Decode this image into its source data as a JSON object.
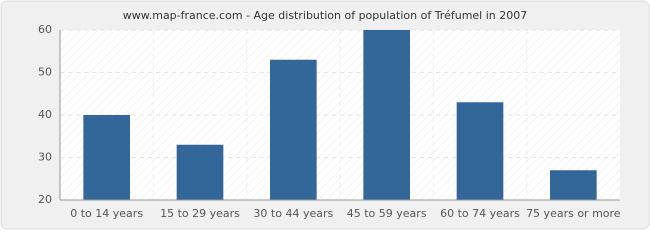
{
  "chart_data": {
    "type": "bar",
    "title": "www.map-france.com - Age distribution of population of Tréfumel in 2007",
    "categories": [
      "0 to 14 years",
      "15 to 29 years",
      "30 to 44 years",
      "45 to 59 years",
      "60 to 74 years",
      "75 years or more"
    ],
    "values": [
      40,
      33,
      53,
      60,
      43,
      27
    ],
    "color": "#336699",
    "ylim": [
      20,
      60
    ],
    "yticks": [
      20,
      30,
      40,
      50,
      60
    ],
    "grid": true
  }
}
